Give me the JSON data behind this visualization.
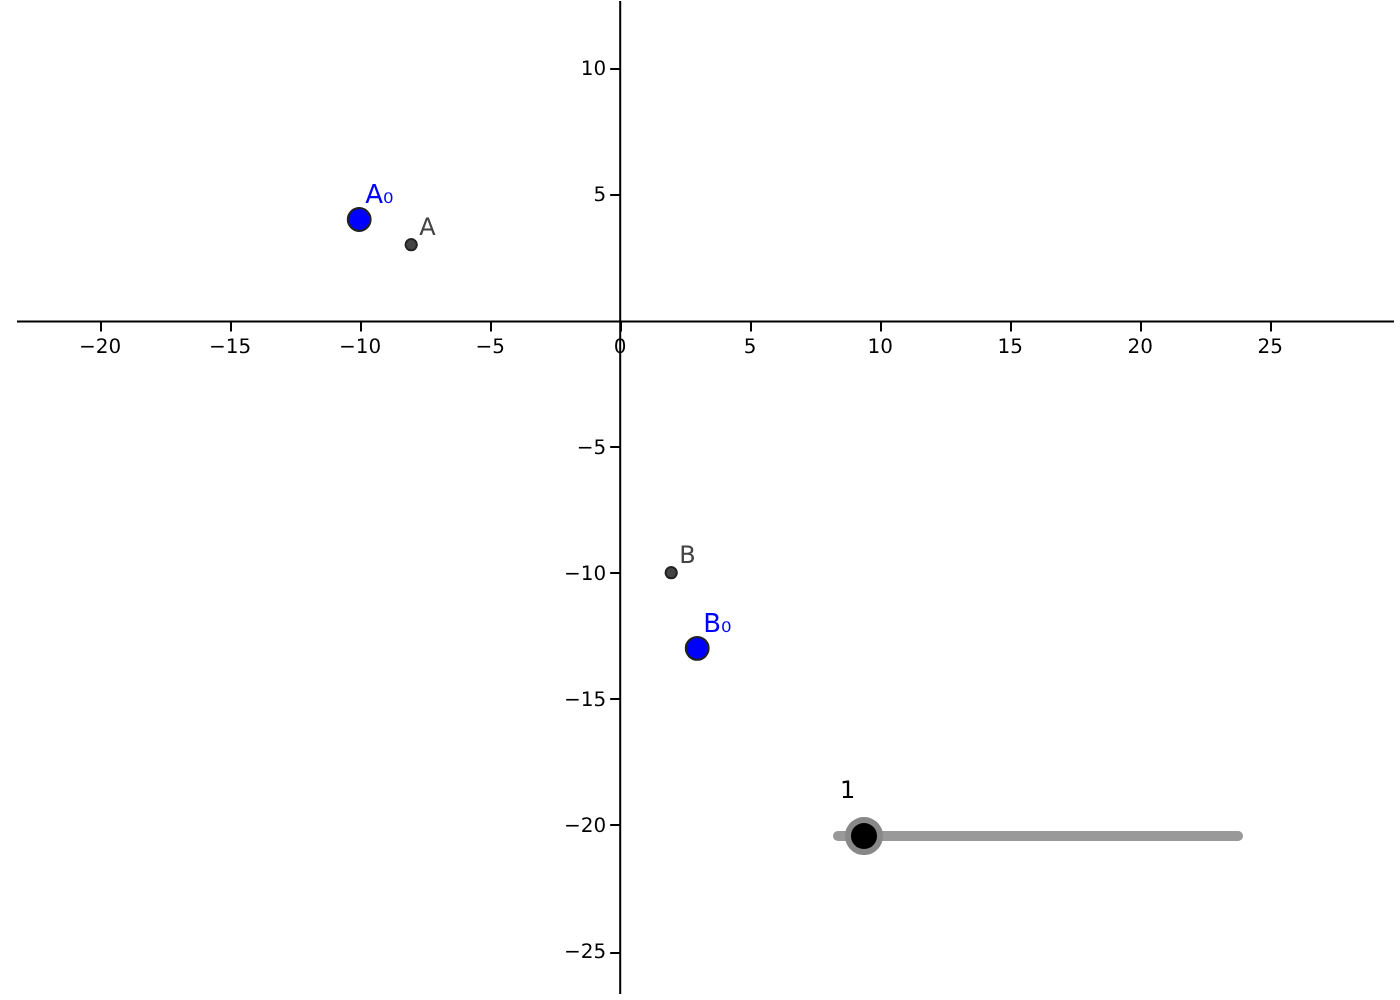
{
  "chart_data": {
    "type": "scatter",
    "xlim": [
      -23.2,
      29.8
    ],
    "ylim": [
      -26.7,
      12.7
    ],
    "xticks": [
      -20,
      -15,
      -10,
      -5,
      0,
      5,
      10,
      15,
      20,
      25
    ],
    "yticks": [
      -25,
      -20,
      -15,
      -10,
      -5,
      5,
      10
    ],
    "grid": false,
    "marker": "circle",
    "series": [
      {
        "name": "A₀",
        "color": "#0000ff",
        "x": [
          -10
        ],
        "values": [
          4
        ]
      },
      {
        "name": "A",
        "color": "#444444",
        "x": [
          -8
        ],
        "values": [
          3
        ]
      },
      {
        "name": "B",
        "color": "#444444",
        "x": [
          2
        ],
        "values": [
          -10
        ]
      },
      {
        "name": "B₀",
        "color": "#0000ff",
        "x": [
          3
        ],
        "values": [
          -13
        ]
      }
    ],
    "annotations": [
      "1"
    ]
  }
}
